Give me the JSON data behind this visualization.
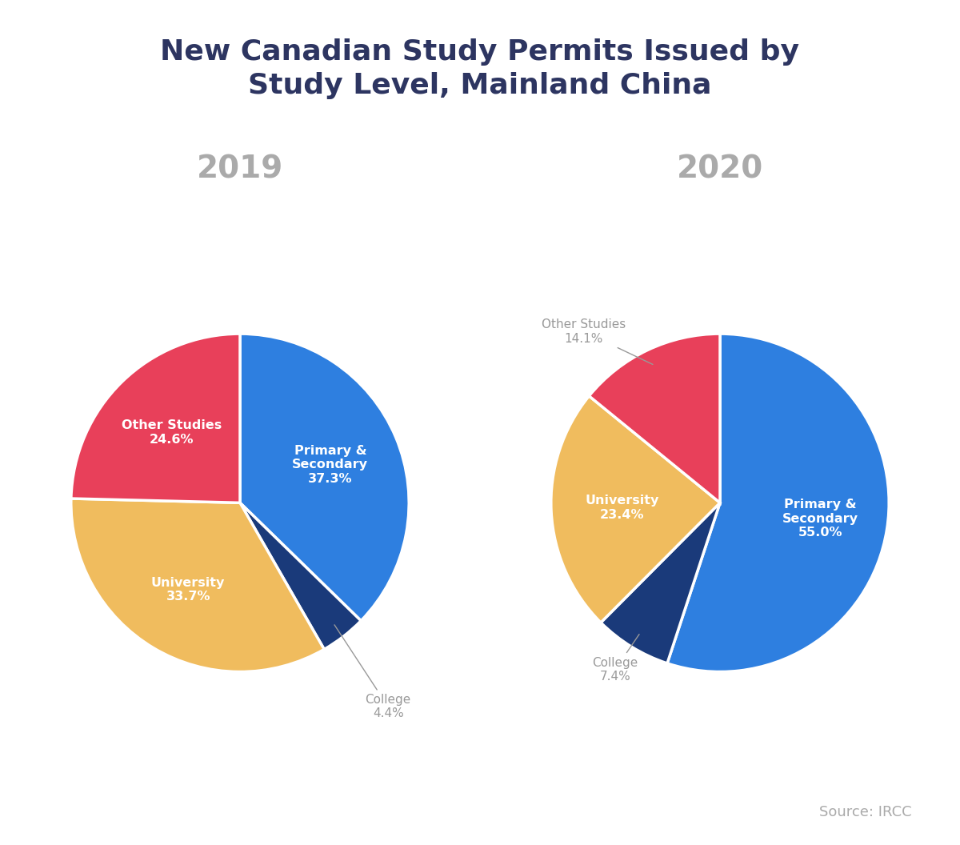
{
  "title": "New Canadian Study Permits Issued by\nStudy Level, Mainland China",
  "title_color": "#2d3561",
  "title_fontsize": 26,
  "year_labels": [
    "2019",
    "2020"
  ],
  "year_color": "#aaaaaa",
  "year_fontsize": 28,
  "source_text": "Source: IRCC",
  "source_color": "#aaaaaa",
  "source_fontsize": 13,
  "pie_2019": {
    "labels": [
      "Primary &\nSecondary",
      "College",
      "University",
      "Other Studies"
    ],
    "values": [
      37.3,
      4.4,
      33.7,
      24.6
    ],
    "colors": [
      "#2e7fe0",
      "#1a3a7a",
      "#f0bc5e",
      "#e8405a"
    ],
    "inside_labels": [
      true,
      false,
      true,
      true
    ],
    "startangle": 90,
    "pct_labels": [
      "37.3%",
      "4.4%",
      "33.7%",
      "24.6%"
    ],
    "label_radii": [
      0.58,
      null,
      0.6,
      0.58
    ]
  },
  "pie_2020": {
    "labels": [
      "Primary &\nSecondary",
      "College",
      "University",
      "Other Studies"
    ],
    "values": [
      55.0,
      7.4,
      23.4,
      14.1
    ],
    "colors": [
      "#2e7fe0",
      "#1a3a7a",
      "#f0bc5e",
      "#e8405a"
    ],
    "inside_labels": [
      true,
      false,
      true,
      false
    ],
    "startangle": 90,
    "pct_labels": [
      "55.0%",
      "7.4%",
      "23.4%",
      "14.1%"
    ],
    "label_radii": [
      0.6,
      null,
      0.58,
      null
    ]
  },
  "background_color": "#ffffff",
  "wedge_linewidth": 2.5,
  "wedge_edgecolor": "#ffffff"
}
